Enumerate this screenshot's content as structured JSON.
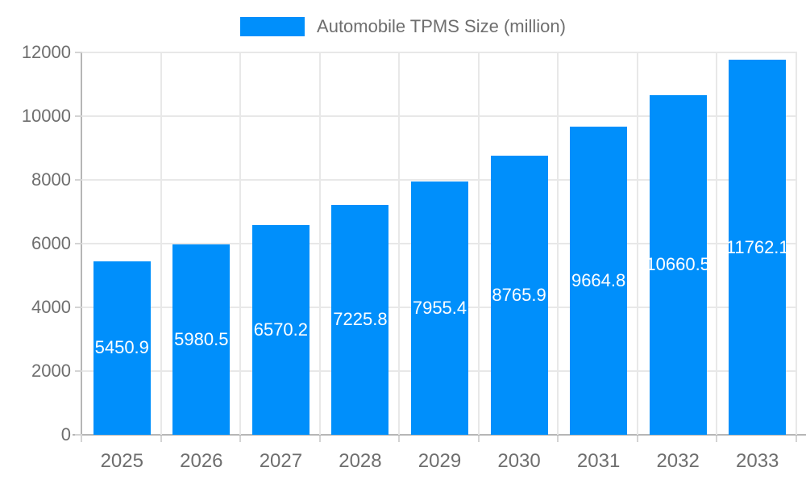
{
  "chart_data": {
    "type": "bar",
    "title": "Automobile TPMS Size (million)",
    "categories": [
      "2025",
      "2026",
      "2027",
      "2028",
      "2029",
      "2030",
      "2031",
      "2032",
      "2033"
    ],
    "values": [
      5450.9,
      5980.5,
      6570.2,
      7225.8,
      7955.4,
      8765.9,
      9664.8,
      10660.5,
      11762.1
    ],
    "data_labels": [
      "5450.9",
      "5980.5",
      "6570.2",
      "7225.8",
      "7955.4",
      "8765.9",
      "9664.8",
      "10660.5",
      "11762.1"
    ],
    "xlabel": "",
    "ylabel": "",
    "ylim": [
      0,
      12000
    ],
    "y_ticks": [
      0,
      2000,
      4000,
      6000,
      8000,
      10000,
      12000
    ],
    "y_tick_labels": [
      "0",
      "2000",
      "4000",
      "6000",
      "8000",
      "10000",
      "12000"
    ],
    "grid": true,
    "legend_position": "top"
  },
  "legend": {
    "label": "Automobile TPMS Size (million)"
  },
  "colors": {
    "bar": "#008FFB",
    "grid": "#e8e8e8",
    "axis_line": "#b6b6b6",
    "tick": "#d4d4d4",
    "axis_text": "#6e6e6e",
    "data_label": "#ffffff"
  }
}
